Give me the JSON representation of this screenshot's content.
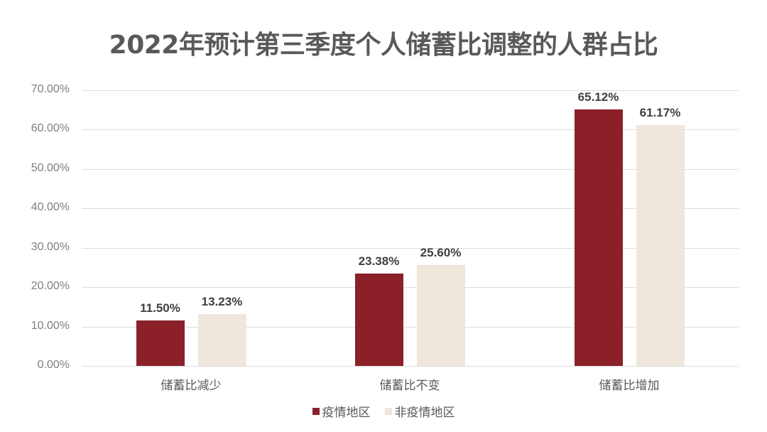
{
  "title": "2022年预计第三季度个人储蓄比调整的人群占比",
  "colors": {
    "epidemic": "#8b2029",
    "non_epidemic": "#efe7dc"
  },
  "legend": [
    "疫情地区",
    "非疫情地区"
  ],
  "yticks": [
    "0.00%",
    "10.00%",
    "20.00%",
    "30.00%",
    "40.00%",
    "50.00%",
    "60.00%",
    "70.00%"
  ],
  "categories": [
    "储蓄比减少",
    "储蓄比不变",
    "储蓄比增加"
  ],
  "labels": {
    "epidemic": [
      "11.50%",
      "23.38%",
      "65.12%"
    ],
    "non_epidemic": [
      "13.23%",
      "25.60%",
      "61.17%"
    ]
  },
  "chart_data": {
    "type": "bar",
    "title": "2022年预计第三季度个人储蓄比调整的人群占比",
    "categories": [
      "储蓄比减少",
      "储蓄比不变",
      "储蓄比增加"
    ],
    "series": [
      {
        "name": "疫情地区",
        "values": [
          11.5,
          23.38,
          65.12
        ],
        "color": "#8b2029"
      },
      {
        "name": "非疫情地区",
        "values": [
          13.23,
          25.6,
          61.17
        ],
        "color": "#efe7dc"
      }
    ],
    "xlabel": "",
    "ylabel": "",
    "ylim": [
      0,
      70
    ],
    "yticks": [
      0,
      10,
      20,
      30,
      40,
      50,
      60,
      70
    ],
    "ytick_format": "0.00%",
    "grid": true,
    "legend_position": "bottom",
    "data_labels": true
  }
}
